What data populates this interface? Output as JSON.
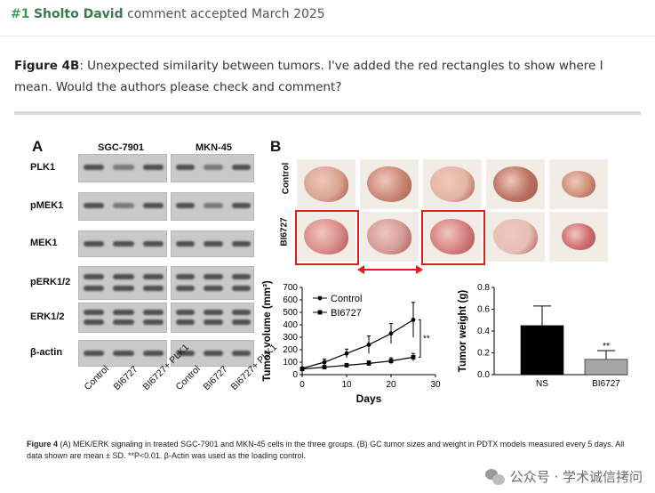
{
  "comment": {
    "number": "#1",
    "author": "Sholto David",
    "status": "comment accepted March 2025",
    "figure_ref": "Figure 4B",
    "text": ": Unexpected similarity between tumors. I've added the red rectangles to show where I mean. Would the authors please check and comment?"
  },
  "figure": {
    "panel_a": "A",
    "panel_b": "B",
    "cell_lines": [
      "SGC-7901",
      "MKN-45"
    ],
    "blot_rows": [
      "PLK1",
      "pMEK1",
      "MEK1",
      "pERK1/2",
      "ERK1/2",
      "β-actin"
    ],
    "lane_labels": [
      "Control",
      "BI6727",
      "BI6727+ PLK1"
    ],
    "row_labels": [
      "Control",
      "BI6727"
    ],
    "caption_bold_a": "Figure 4",
    "caption": " (A) MEK/ERK signaling in treated SGC-7901 and MKN-45 cells in the three groups. (B) GC tumor sizes and weight in PDTX models measured every 5 days. All data shown are mean ± SD. **P<0.01. β-Actin was used as the loading control."
  },
  "chart_data": [
    {
      "type": "line",
      "xlabel": "Days",
      "ylabel": "Tumor volume (mm³)",
      "xlim": [
        0,
        30
      ],
      "ylim": [
        0,
        700
      ],
      "xticks": [
        0,
        10,
        20,
        30
      ],
      "yticks": [
        0,
        100,
        200,
        300,
        400,
        500,
        600,
        700
      ],
      "x": [
        0,
        5,
        10,
        15,
        20,
        25
      ],
      "series": [
        {
          "name": "Control",
          "values": [
            50,
            100,
            170,
            240,
            330,
            440
          ],
          "errors": [
            10,
            25,
            35,
            70,
            80,
            140
          ]
        },
        {
          "name": "BI6727",
          "values": [
            45,
            60,
            75,
            90,
            110,
            140
          ],
          "errors": [
            8,
            12,
            15,
            20,
            25,
            30
          ]
        }
      ],
      "annotation": "**",
      "legend": "top-left"
    },
    {
      "type": "bar",
      "ylabel": "Tumor weight (g)",
      "ylim": [
        0,
        0.8
      ],
      "yticks": [
        "0.0",
        "0.2",
        "0.4",
        "0.6",
        "0.8"
      ],
      "categories": [
        "NS",
        "BI6727"
      ],
      "values": [
        0.45,
        0.14
      ],
      "errors": [
        0.18,
        0.08
      ],
      "colors": [
        "#000000",
        "#a6a6a6"
      ],
      "annotation": "**"
    }
  ],
  "watermark": "公众号 · 学术诚信拷问"
}
